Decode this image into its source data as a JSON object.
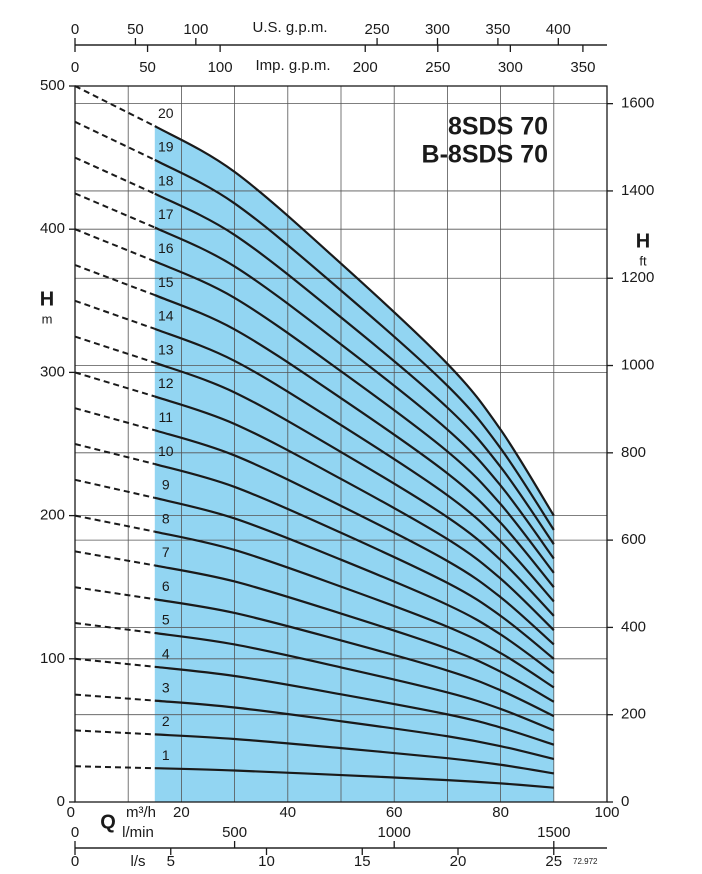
{
  "chart_data": {
    "type": "line",
    "title": "8SDS 70",
    "subtitle": "B-8SDS 70",
    "note": "72.972",
    "xlabel": "Q",
    "xunit": "m³/h",
    "ylabel": "H",
    "yunit": "m",
    "y2label": "H",
    "y2unit": "ft",
    "x": [
      0,
      15,
      30,
      50,
      70,
      80,
      90
    ],
    "xlim": [
      0,
      100
    ],
    "xticks": [
      0,
      20,
      40,
      60,
      80,
      100
    ],
    "xminor": [
      10,
      30,
      50,
      70,
      90
    ],
    "ylim": [
      0,
      500
    ],
    "yticks": [
      0,
      100,
      200,
      300,
      400,
      500
    ],
    "y2lim": [
      0,
      1640.42
    ],
    "y2ticks": [
      0,
      200,
      400,
      600,
      800,
      1000,
      1200,
      1400,
      1600
    ],
    "operating_range": [
      15,
      90
    ],
    "shade_color": "#92d5f2",
    "color": "#1a1a1a",
    "grid": true,
    "x_top": {
      "label": "U.S. g.p.m.",
      "lim": [
        0,
        440.29
      ],
      "ticks": [
        0,
        50,
        100,
        250,
        300,
        350,
        400
      ]
    },
    "x_top2": {
      "label": "Imp. g.p.m.",
      "lim": [
        0,
        366.6
      ],
      "ticks": [
        0,
        50,
        100,
        200,
        250,
        300,
        350
      ]
    },
    "x_bottom2": {
      "label": "l/min",
      "lim": [
        0,
        1666.67
      ],
      "ticks": [
        0,
        500,
        1000,
        1500
      ]
    },
    "x_bottom3": {
      "label": "l/s",
      "lim": [
        0,
        27.78
      ],
      "ticks": [
        0,
        5,
        10,
        15,
        20,
        25
      ]
    },
    "series": [
      {
        "name": "1",
        "values": [
          25,
          23.6,
          22,
          18.8,
          15.3,
          13,
          10
        ]
      },
      {
        "name": "2",
        "values": [
          50,
          47.2,
          44,
          37.6,
          30.6,
          26,
          20
        ]
      },
      {
        "name": "3",
        "values": [
          75,
          70.8,
          66,
          56.4,
          45.9,
          39,
          30
        ]
      },
      {
        "name": "4",
        "values": [
          100,
          94.4,
          88,
          75.2,
          61.2,
          52,
          40
        ]
      },
      {
        "name": "5",
        "values": [
          125,
          118,
          110,
          94,
          76.5,
          65,
          50
        ]
      },
      {
        "name": "6",
        "values": [
          150,
          141.6,
          132,
          112.8,
          91.8,
          78,
          60
        ]
      },
      {
        "name": "7",
        "values": [
          175,
          165.2,
          154,
          131.6,
          107.1,
          91,
          70
        ]
      },
      {
        "name": "8",
        "values": [
          200,
          188.8,
          176,
          150.4,
          122.4,
          104,
          80
        ]
      },
      {
        "name": "9",
        "values": [
          225,
          212.4,
          198,
          169.2,
          137.7,
          117,
          90
        ]
      },
      {
        "name": "10",
        "values": [
          250,
          236,
          220,
          188,
          153,
          130,
          100
        ]
      },
      {
        "name": "11",
        "values": [
          275,
          259.6,
          242,
          206.8,
          168.3,
          143,
          110
        ]
      },
      {
        "name": "12",
        "values": [
          300,
          283.2,
          264,
          225.6,
          183.6,
          156,
          120
        ]
      },
      {
        "name": "13",
        "values": [
          325,
          306.8,
          286,
          244.4,
          198.9,
          169,
          130
        ]
      },
      {
        "name": "14",
        "values": [
          350,
          330.4,
          308,
          263.2,
          214.2,
          182,
          140
        ]
      },
      {
        "name": "15",
        "values": [
          375,
          354,
          330,
          282,
          229.5,
          195,
          150
        ]
      },
      {
        "name": "16",
        "values": [
          400,
          377.6,
          352,
          300.8,
          244.8,
          208,
          160
        ]
      },
      {
        "name": "17",
        "values": [
          425,
          401.2,
          374,
          319.6,
          260.1,
          221,
          170
        ]
      },
      {
        "name": "18",
        "values": [
          450,
          424.8,
          396,
          338.4,
          275.4,
          234,
          180
        ]
      },
      {
        "name": "19",
        "values": [
          475,
          448.4,
          418,
          357.2,
          290.7,
          247,
          190
        ]
      },
      {
        "name": "20",
        "values": [
          500,
          472,
          440,
          376,
          306,
          260,
          200
        ]
      }
    ]
  }
}
